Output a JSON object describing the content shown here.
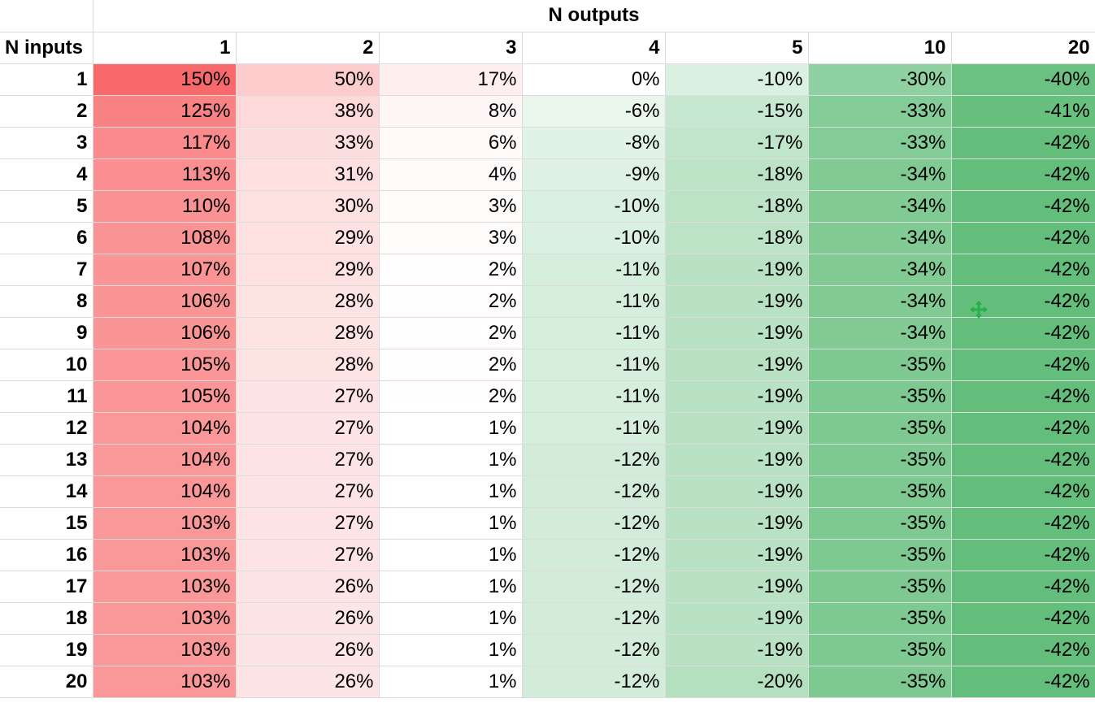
{
  "sheet": {
    "group_header": "N outputs",
    "corner_label": "N inputs",
    "column_headers": [
      "1",
      "2",
      "3",
      "4",
      "5",
      "10",
      "20"
    ],
    "rows": [
      {
        "label": "1",
        "values": [
          "150%",
          "50%",
          "17%",
          "0%",
          "-10%",
          "-30%",
          "-40%"
        ]
      },
      {
        "label": "2",
        "values": [
          "125%",
          "38%",
          "8%",
          "-6%",
          "-15%",
          "-33%",
          "-41%"
        ]
      },
      {
        "label": "3",
        "values": [
          "117%",
          "33%",
          "6%",
          "-8%",
          "-17%",
          "-33%",
          "-42%"
        ]
      },
      {
        "label": "4",
        "values": [
          "113%",
          "31%",
          "4%",
          "-9%",
          "-18%",
          "-34%",
          "-42%"
        ]
      },
      {
        "label": "5",
        "values": [
          "110%",
          "30%",
          "3%",
          "-10%",
          "-18%",
          "-34%",
          "-42%"
        ]
      },
      {
        "label": "6",
        "values": [
          "108%",
          "29%",
          "3%",
          "-10%",
          "-18%",
          "-34%",
          "-42%"
        ]
      },
      {
        "label": "7",
        "values": [
          "107%",
          "29%",
          "2%",
          "-11%",
          "-19%",
          "-34%",
          "-42%"
        ]
      },
      {
        "label": "8",
        "values": [
          "106%",
          "28%",
          "2%",
          "-11%",
          "-19%",
          "-34%",
          "-42%"
        ]
      },
      {
        "label": "9",
        "values": [
          "106%",
          "28%",
          "2%",
          "-11%",
          "-19%",
          "-34%",
          "-42%"
        ]
      },
      {
        "label": "10",
        "values": [
          "105%",
          "28%",
          "2%",
          "-11%",
          "-19%",
          "-35%",
          "-42%"
        ]
      },
      {
        "label": "11",
        "values": [
          "105%",
          "27%",
          "2%",
          "-11%",
          "-19%",
          "-35%",
          "-42%"
        ]
      },
      {
        "label": "12",
        "values": [
          "104%",
          "27%",
          "1%",
          "-11%",
          "-19%",
          "-35%",
          "-42%"
        ]
      },
      {
        "label": "13",
        "values": [
          "104%",
          "27%",
          "1%",
          "-12%",
          "-19%",
          "-35%",
          "-42%"
        ]
      },
      {
        "label": "14",
        "values": [
          "104%",
          "27%",
          "1%",
          "-12%",
          "-19%",
          "-35%",
          "-42%"
        ]
      },
      {
        "label": "15",
        "values": [
          "103%",
          "27%",
          "1%",
          "-12%",
          "-19%",
          "-35%",
          "-42%"
        ]
      },
      {
        "label": "16",
        "values": [
          "103%",
          "27%",
          "1%",
          "-12%",
          "-19%",
          "-35%",
          "-42%"
        ]
      },
      {
        "label": "17",
        "values": [
          "103%",
          "26%",
          "1%",
          "-12%",
          "-19%",
          "-35%",
          "-42%"
        ]
      },
      {
        "label": "18",
        "values": [
          "103%",
          "26%",
          "1%",
          "-12%",
          "-19%",
          "-35%",
          "-42%"
        ]
      },
      {
        "label": "19",
        "values": [
          "103%",
          "26%",
          "1%",
          "-12%",
          "-19%",
          "-35%",
          "-42%"
        ]
      },
      {
        "label": "20",
        "values": [
          "103%",
          "26%",
          "1%",
          "-12%",
          "-20%",
          "-35%",
          "-42%"
        ]
      }
    ]
  },
  "color_scale": {
    "min_color": "#63be7b",
    "mid_color": "#ffffff",
    "max_color": "#f8696b",
    "mid_value": 0
  },
  "icons": {
    "cursor": "move-cursor-icon"
  }
}
